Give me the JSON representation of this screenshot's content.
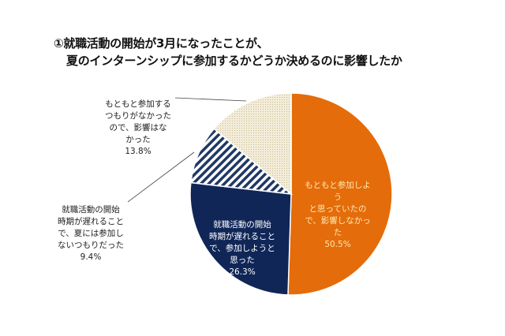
{
  "chart_data": {
    "type": "pie",
    "title_lines": [
      "①就職活動の開始が3月になったことが、",
      "夏のインターンシップに参加するかどうか決めるのに影響したか"
    ],
    "start": "top, clockwise",
    "slices": [
      {
        "label": "もともと参加しようと思っていたので、影響しなかった",
        "label_lines": "もともと参加しよう\nと思っていたの\nで、影響しなかっ\nた",
        "value": 50.5,
        "value_label": "50.5%",
        "color": "#e46c0a",
        "pattern": "solid",
        "label_color": "#fde9b0"
      },
      {
        "label": "就職活動の開始時期が遅れることで、参加しようと思った",
        "label_lines": "就職活動の開始\n時期が遅れること\nで、参加しようと\n思った",
        "value": 26.3,
        "value_label": "26.3%",
        "color": "#102657",
        "pattern": "solid",
        "label_color": "#ffffff"
      },
      {
        "label": "就職活動の開始時期が遅れることで、夏には参加しないつもりだった",
        "label_lines": "就職活動の開始\n時期が遅れること\nで、夏には参加し\nないつもりだった",
        "value": 9.4,
        "value_label": "9.4%",
        "color": "#1f3864",
        "pattern": "diagonal-stripes",
        "label_color": "#222222"
      },
      {
        "label": "もともと参加するつもりがなかったので、影響はなかった",
        "label_lines": "もともと参加する\nつもりがなかった\nので、影響はな\nかった",
        "value": 13.8,
        "value_label": "13.8%",
        "color": "#eee6cf",
        "pattern": "dots",
        "label_color": "#222222"
      }
    ]
  }
}
